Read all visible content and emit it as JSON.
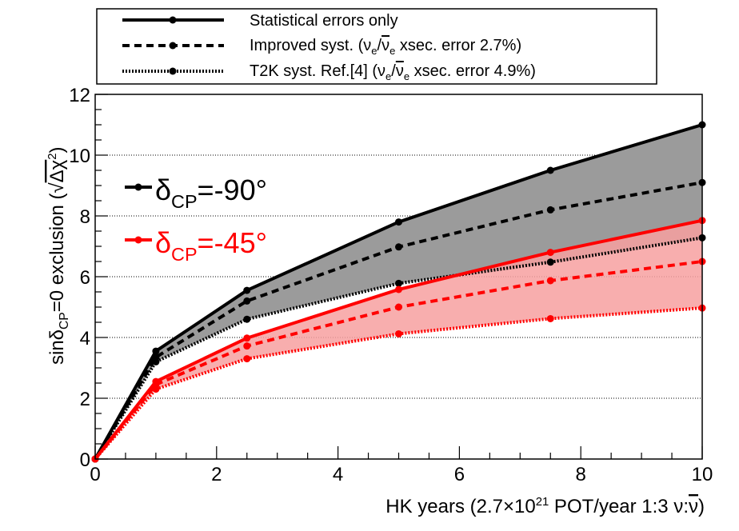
{
  "chart_data": {
    "type": "line",
    "xlabel": {
      "pre": "HK years (2.7×10",
      "exp": "21",
      "post": " POT/year 1:3 ν:",
      "nubar": "ν"
    },
    "ylabel": {
      "pre": "sinδ",
      "sub": "CP",
      "mid": "=0 exclusion (",
      "sqrt": "√",
      "chi": "Δχ",
      "sup": "2",
      "post": ")"
    },
    "xlim": [
      0,
      10
    ],
    "ylim": [
      0,
      12
    ],
    "x_ticks": [
      "0",
      "2",
      "4",
      "6",
      "8",
      "10"
    ],
    "y_ticks": [
      "0",
      "2",
      "4",
      "6",
      "8",
      "10",
      "12"
    ],
    "grid": "horizontal dotted",
    "x": [
      0,
      1,
      2.5,
      5,
      7.5,
      10
    ],
    "legend": {
      "placement": "top",
      "entries": [
        {
          "style": "solid",
          "label": "Statistical errors only"
        },
        {
          "style": "dashed",
          "pre": "Improved syst. (",
          "nu": "ν",
          "sub1": "e",
          "slash": "/",
          "nubar": "ν",
          "sub2": "e",
          "post": " xsec. error 2.7%)"
        },
        {
          "style": "dotted",
          "pre": "T2K syst. Ref.[4] (",
          "nu": "ν",
          "sub1": "e",
          "slash": "/",
          "nubar": "ν",
          "sub2": "e",
          "post": " xsec. error 4.9%)"
        }
      ]
    },
    "groups": [
      {
        "label_pre": "δ",
        "label_sub": "CP",
        "label_post": "=-90°",
        "color": "#000000",
        "fill_color": "#9b9b9b",
        "series": [
          {
            "style": "solid",
            "values": [
              0,
              3.55,
              5.55,
              7.8,
              9.5,
              11.0
            ]
          },
          {
            "style": "dashed",
            "values": [
              0,
              3.35,
              5.2,
              6.98,
              8.2,
              9.1
            ]
          },
          {
            "style": "dotted",
            "values": [
              0,
              3.2,
              4.6,
              5.78,
              6.48,
              7.28
            ]
          }
        ]
      },
      {
        "label_pre": "δ",
        "label_sub": "CP",
        "label_post": "=-45°",
        "color": "#ff0000",
        "fill_color": "#f7a0a0",
        "series": [
          {
            "style": "solid",
            "values": [
              0,
              2.55,
              3.98,
              5.58,
              6.8,
              7.85
            ]
          },
          {
            "style": "dashed",
            "values": [
              0,
              2.45,
              3.72,
              5.0,
              5.87,
              6.5
            ]
          },
          {
            "style": "dotted",
            "values": [
              0,
              2.3,
              3.3,
              4.12,
              4.62,
              4.97
            ]
          }
        ]
      }
    ]
  }
}
